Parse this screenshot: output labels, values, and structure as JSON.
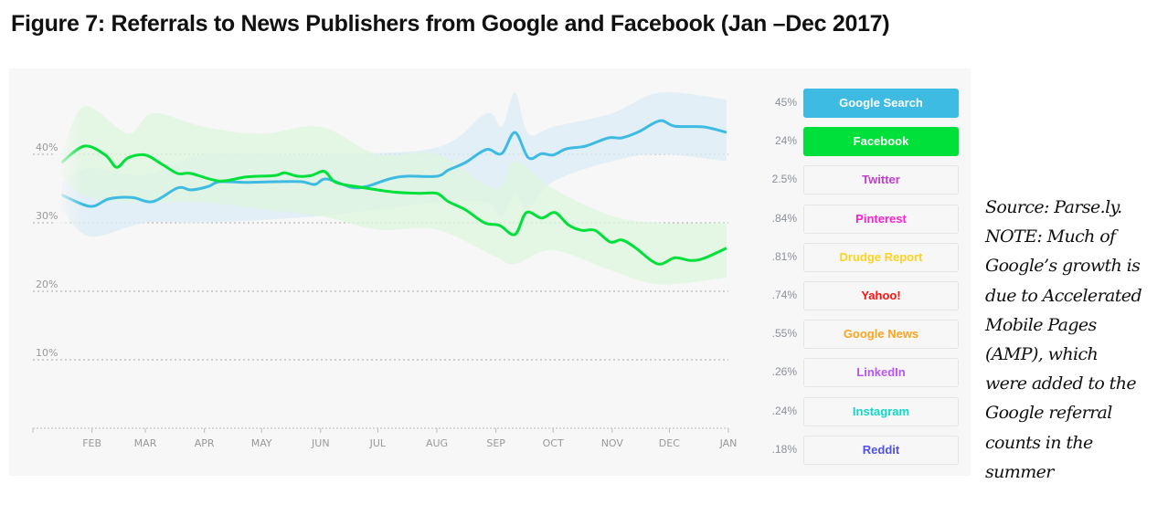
{
  "title": "Figure 7: Referrals to News Publishers from Google and Facebook (Jan –Dec 2017)",
  "note_lines": [
    "Source: Parse.ly.",
    "NOTE: Much of",
    "Google’s growth is",
    "due to Accelerated",
    "Mobile Pages",
    "(AMP), which",
    "were added to the",
    "Google referral",
    "counts in the",
    "summer"
  ],
  "legend": [
    {
      "label": "Google Search",
      "pct": "45%",
      "color": "#3dbbe3",
      "active": true
    },
    {
      "label": "Facebook",
      "pct": "24%",
      "color": "#00e03a",
      "active": true
    },
    {
      "label": "Twitter",
      "pct": "2.5%",
      "color": "#c13ed0",
      "active": false
    },
    {
      "label": "Pinterest",
      "pct": ".84%",
      "color": "#ff1fd0",
      "active": false
    },
    {
      "label": "Drudge Report",
      "pct": ".81%",
      "color": "#ffd21f",
      "active": false
    },
    {
      "label": "Yahoo!",
      "pct": ".74%",
      "color": "#ff1010",
      "active": false
    },
    {
      "label": "Google News",
      "pct": ".55%",
      "color": "#ffa31f",
      "active": false
    },
    {
      "label": "LinkedIn",
      "pct": ".26%",
      "color": "#bb55f0",
      "active": false
    },
    {
      "label": "Instagram",
      "pct": ".24%",
      "color": "#10d8c8",
      "active": false
    },
    {
      "label": "Reddit",
      "pct": ".18%",
      "color": "#5050f0",
      "active": false
    }
  ],
  "chart_data": {
    "type": "line",
    "title": "",
    "xlabel": "",
    "ylabel": "",
    "ylim": [
      0,
      40
    ],
    "y_ticks": [
      "10%",
      "20%",
      "30%",
      "40%"
    ],
    "y_tick_values": [
      10,
      20,
      30,
      40
    ],
    "x_ticks": [
      "FEB",
      "MAR",
      "APR",
      "MAY",
      "JUN",
      "JUL",
      "AUG",
      "SEP",
      "OCT",
      "NOV",
      "DEC",
      "JAN"
    ],
    "x_tick_dates": [
      "2017-02-01",
      "2017-03-01",
      "2017-04-01",
      "2017-05-01",
      "2017-06-01",
      "2017-07-01",
      "2017-08-01",
      "2017-09-01",
      "2017-10-01",
      "2017-11-01",
      "2017-12-01",
      "2018-01-01"
    ],
    "xlim": [
      "2017-01-01",
      "2018-01-01"
    ],
    "grid": "horizontal dotted",
    "legend_placement": "right",
    "series": [
      {
        "name": "Google Search",
        "color": "#3dbbe3",
        "band_color": "#dcecf6",
        "x": [
          "2017-01-16",
          "2017-01-31",
          "2017-02-10",
          "2017-02-22",
          "2017-03-05",
          "2017-03-18",
          "2017-03-25",
          "2017-04-03",
          "2017-04-09",
          "2017-04-23",
          "2017-05-08",
          "2017-05-22",
          "2017-05-29",
          "2017-06-04",
          "2017-06-17",
          "2017-06-25",
          "2017-07-07",
          "2017-07-16",
          "2017-08-01",
          "2017-08-07",
          "2017-08-16",
          "2017-08-27",
          "2017-09-04",
          "2017-09-11",
          "2017-09-18",
          "2017-09-25",
          "2017-10-01",
          "2017-10-08",
          "2017-10-18",
          "2017-10-30",
          "2017-11-06",
          "2017-11-15",
          "2017-11-26",
          "2017-12-04",
          "2017-12-19",
          "2017-12-31"
        ],
        "values": [
          34.1,
          32.4,
          33.5,
          33.7,
          33.1,
          35.1,
          34.8,
          35.3,
          36.0,
          35.9,
          36.0,
          36.0,
          35.6,
          36.4,
          35.2,
          35.3,
          36.4,
          36.8,
          36.8,
          37.7,
          38.8,
          40.7,
          40.1,
          43.2,
          39.5,
          40.1,
          39.9,
          40.8,
          41.2,
          42.4,
          42.4,
          43.3,
          44.9,
          44.1,
          44.0,
          43.2
        ],
        "band_x": [
          "2017-01-16",
          "2017-01-31",
          "2017-03-01",
          "2017-04-01",
          "2017-06-01",
          "2017-08-01",
          "2017-08-27",
          "2017-09-04",
          "2017-09-11",
          "2017-09-18",
          "2017-10-01",
          "2017-11-01",
          "2017-11-26",
          "2017-12-31"
        ],
        "band_upper": [
          36,
          38,
          37,
          40,
          40,
          41,
          46,
          44,
          49,
          43,
          44,
          46,
          49,
          48
        ],
        "band_lower": [
          32,
          28,
          30,
          30,
          31,
          33,
          33,
          31,
          34,
          32,
          36,
          39,
          40,
          39
        ]
      },
      {
        "name": "Facebook",
        "color": "#00e03a",
        "band_color": "#def5de",
        "x": [
          "2017-01-16",
          "2017-01-28",
          "2017-02-08",
          "2017-02-14",
          "2017-02-20",
          "2017-03-01",
          "2017-03-10",
          "2017-03-18",
          "2017-03-25",
          "2017-04-09",
          "2017-04-23",
          "2017-05-08",
          "2017-05-13",
          "2017-05-20",
          "2017-05-27",
          "2017-06-03",
          "2017-06-09",
          "2017-06-22",
          "2017-07-09",
          "2017-07-23",
          "2017-08-01",
          "2017-08-07",
          "2017-08-16",
          "2017-08-26",
          "2017-09-03",
          "2017-09-11",
          "2017-09-17",
          "2017-09-25",
          "2017-10-02",
          "2017-10-09",
          "2017-10-16",
          "2017-10-23",
          "2017-10-31",
          "2017-11-06",
          "2017-11-13",
          "2017-11-22",
          "2017-11-27",
          "2017-12-04",
          "2017-12-12",
          "2017-12-19",
          "2017-12-31"
        ],
        "values": [
          38.8,
          41.2,
          39.9,
          38.1,
          39.5,
          39.9,
          38.5,
          37.2,
          37.2,
          36.1,
          36.7,
          36.9,
          37.3,
          36.8,
          36.9,
          37.5,
          35.9,
          35.2,
          34.5,
          34.3,
          34.3,
          33.1,
          31.9,
          30.0,
          29.6,
          28.3,
          31.5,
          30.7,
          31.5,
          29.7,
          28.9,
          28.9,
          27.2,
          27.5,
          26.4,
          24.4,
          24.0,
          24.9,
          24.5,
          24.8,
          26.3
        ],
        "band_x": [
          "2017-01-16",
          "2017-01-28",
          "2017-02-20",
          "2017-03-05",
          "2017-04-01",
          "2017-05-01",
          "2017-06-01",
          "2017-07-01",
          "2017-08-01",
          "2017-09-01",
          "2017-09-11",
          "2017-10-01",
          "2017-11-01",
          "2017-11-26",
          "2017-12-31"
        ],
        "band_upper": [
          40,
          47,
          43,
          46,
          44,
          43,
          44,
          40,
          40,
          35,
          39,
          35,
          31,
          30,
          30
        ],
        "band_lower": [
          37,
          34,
          33,
          33,
          33,
          32,
          31,
          29,
          29,
          25,
          24,
          26,
          23,
          21,
          22
        ]
      }
    ]
  }
}
